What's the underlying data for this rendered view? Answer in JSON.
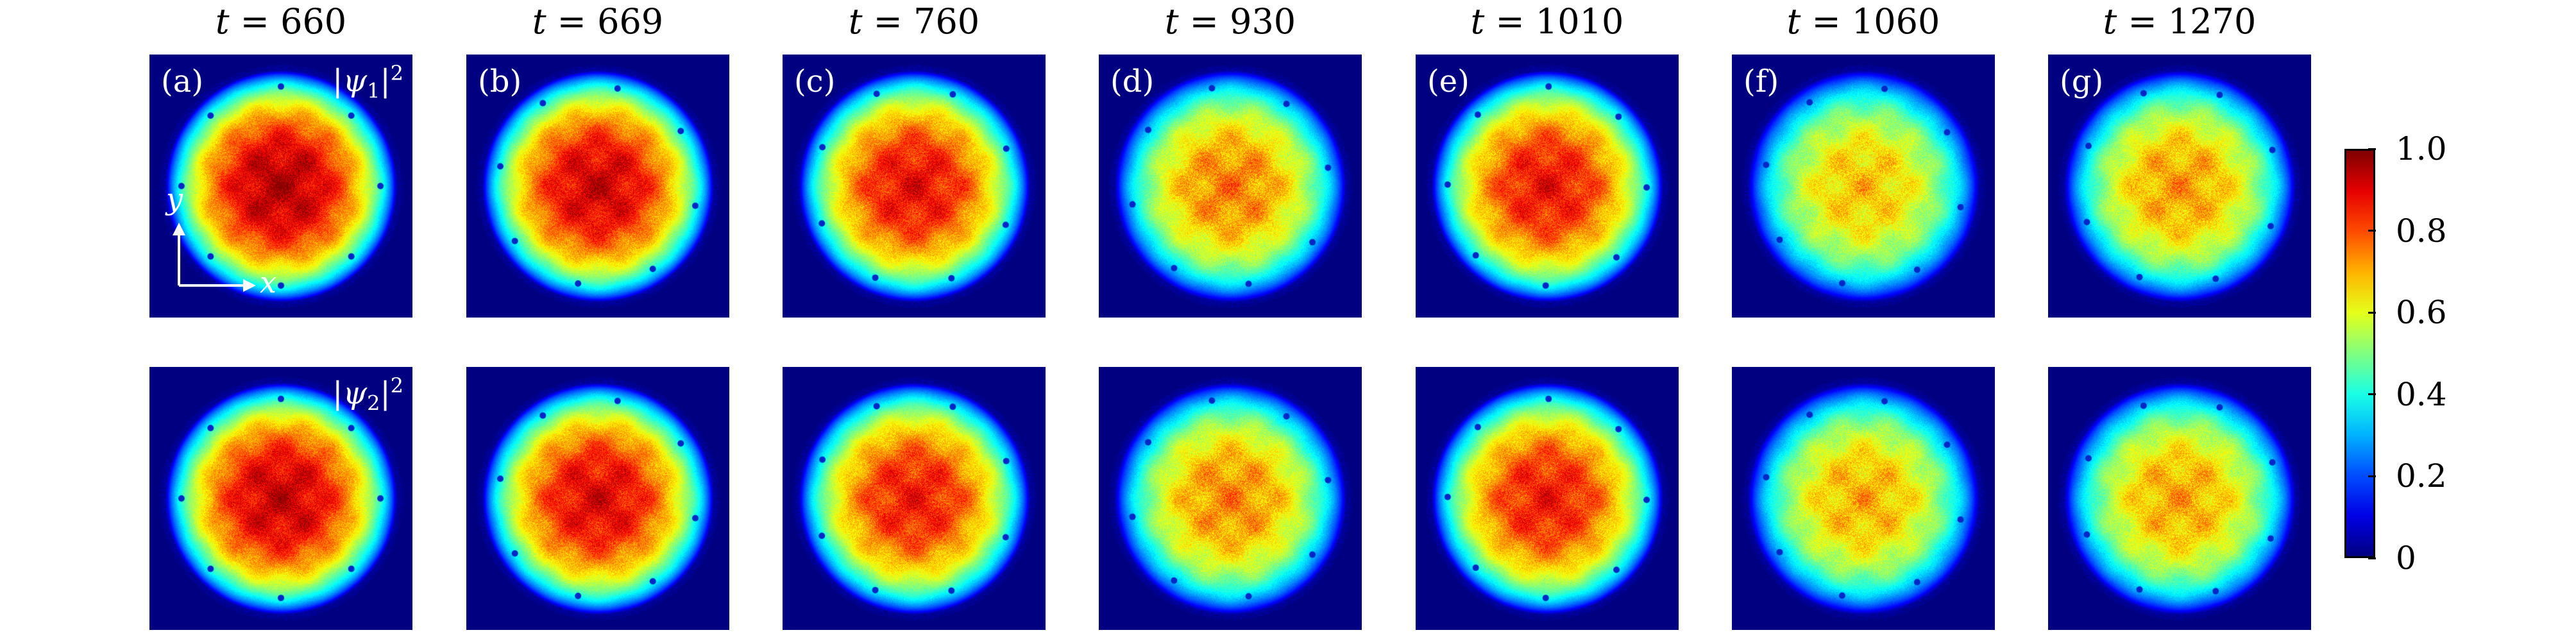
{
  "chart_data": {
    "type": "heatmap",
    "time_prefix": "t = ",
    "times": [
      "660",
      "669",
      "760",
      "930",
      "1010",
      "1060",
      "1270"
    ],
    "panel_labels": [
      "(a)",
      "(b)",
      "(c)",
      "(d)",
      "(e)",
      "(f)",
      "(g)"
    ],
    "rows": [
      {
        "name": "psi1",
        "label_var": "ψ",
        "label_sub": "1",
        "label_sup": "2"
      },
      {
        "name": "psi2",
        "label_var": "ψ",
        "label_sub": "2",
        "label_sup": "2"
      }
    ],
    "axis_labels": {
      "x": "x",
      "y": "y"
    },
    "colorbar": {
      "min": 0,
      "max": 1.0,
      "tick_labels": [
        "1.0",
        "0.8",
        "0.6",
        "0.4",
        "0.2",
        "0"
      ],
      "tick_values": [
        1.0,
        0.8,
        0.6,
        0.4,
        0.2,
        0
      ],
      "colormap": "jet"
    },
    "peak_density": [
      [
        0.95,
        0.92,
        0.88,
        0.75,
        0.87,
        0.68,
        0.72
      ],
      [
        0.93,
        0.9,
        0.86,
        0.74,
        0.86,
        0.7,
        0.71
      ]
    ]
  }
}
